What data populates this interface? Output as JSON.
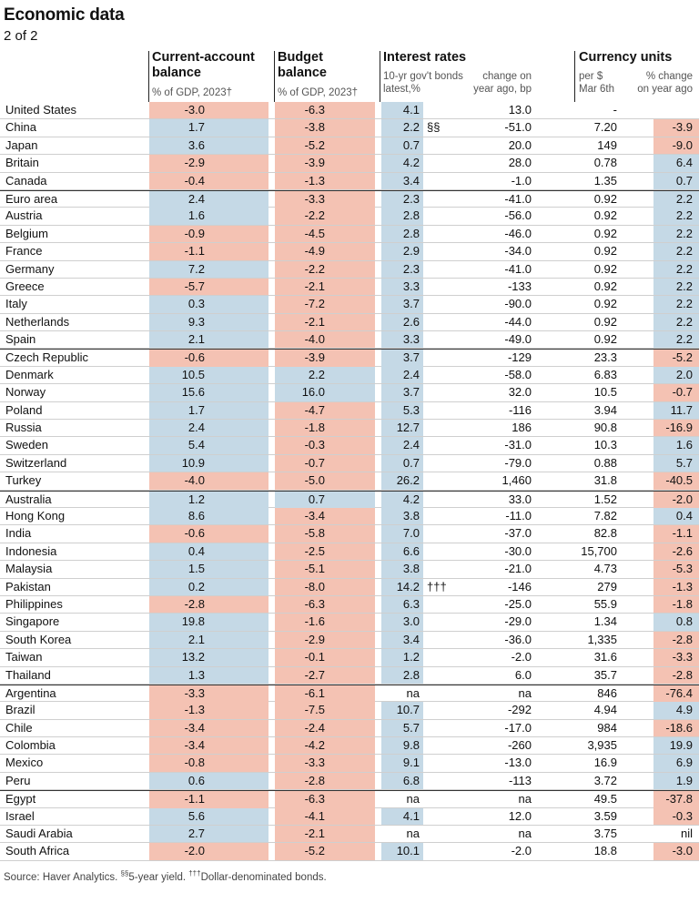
{
  "title": "Economic data",
  "subtitle": "2 of 2",
  "headers": {
    "cab": {
      "line1": "Current-account",
      "line2": "balance",
      "sub": "% of GDP, 2023†"
    },
    "budget": {
      "line1": "Budget",
      "line2": "balance",
      "sub": "% of GDP, 2023†"
    },
    "interest": {
      "line1": "Interest rates",
      "sub1a": "10-yr gov't bonds",
      "sub1b": "latest,%",
      "sub2a": "change on",
      "sub2b": "year ago, bp"
    },
    "currency": {
      "line1": "Currency units",
      "sub1a": "per $",
      "sub1b": "Mar 6th",
      "sub2a": "% change",
      "sub2b": "on year ago"
    }
  },
  "colors": {
    "positive": "#c5d9e6",
    "negative": "#f4c2b3",
    "neutral": "#e4e4e4"
  },
  "rows": [
    {
      "country": "United States",
      "cab": "-3.0",
      "budget": "-6.3",
      "rate": "4.1",
      "note": "",
      "change": "13.0",
      "currency": "-",
      "pct": "",
      "group_start": true
    },
    {
      "country": "China",
      "cab": "1.7",
      "budget": "-3.8",
      "rate": "2.2",
      "note": "§§",
      "change": "-51.0",
      "currency": "7.20",
      "pct": "-3.9"
    },
    {
      "country": "Japan",
      "cab": "3.6",
      "budget": "-5.2",
      "rate": "0.7",
      "note": "",
      "change": "20.0",
      "currency": "149",
      "pct": "-9.0"
    },
    {
      "country": "Britain",
      "cab": "-2.9",
      "budget": "-3.9",
      "rate": "4.2",
      "note": "",
      "change": "28.0",
      "currency": "0.78",
      "pct": "6.4"
    },
    {
      "country": "Canada",
      "cab": "-0.4",
      "budget": "-1.3",
      "rate": "3.4",
      "note": "",
      "change": "-1.0",
      "currency": "1.35",
      "pct": "0.7"
    },
    {
      "country": "Euro area",
      "cab": "2.4",
      "budget": "-3.3",
      "rate": "2.3",
      "note": "",
      "change": "-41.0",
      "currency": "0.92",
      "pct": "2.2",
      "group_start": true
    },
    {
      "country": "Austria",
      "cab": "1.6",
      "budget": "-2.2",
      "rate": "2.8",
      "note": "",
      "change": "-56.0",
      "currency": "0.92",
      "pct": "2.2"
    },
    {
      "country": "Belgium",
      "cab": "-0.9",
      "budget": "-4.5",
      "rate": "2.8",
      "note": "",
      "change": "-46.0",
      "currency": "0.92",
      "pct": "2.2"
    },
    {
      "country": "France",
      "cab": "-1.1",
      "budget": "-4.9",
      "rate": "2.9",
      "note": "",
      "change": "-34.0",
      "currency": "0.92",
      "pct": "2.2"
    },
    {
      "country": "Germany",
      "cab": "7.2",
      "budget": "-2.2",
      "rate": "2.3",
      "note": "",
      "change": "-41.0",
      "currency": "0.92",
      "pct": "2.2"
    },
    {
      "country": "Greece",
      "cab": "-5.7",
      "budget": "-2.1",
      "rate": "3.3",
      "note": "",
      "change": "-133",
      "currency": "0.92",
      "pct": "2.2"
    },
    {
      "country": "Italy",
      "cab": "0.3",
      "budget": "-7.2",
      "rate": "3.7",
      "note": "",
      "change": "-90.0",
      "currency": "0.92",
      "pct": "2.2"
    },
    {
      "country": "Netherlands",
      "cab": "9.3",
      "budget": "-2.1",
      "rate": "2.6",
      "note": "",
      "change": "-44.0",
      "currency": "0.92",
      "pct": "2.2"
    },
    {
      "country": "Spain",
      "cab": "2.1",
      "budget": "-4.0",
      "rate": "3.3",
      "note": "",
      "change": "-49.0",
      "currency": "0.92",
      "pct": "2.2"
    },
    {
      "country": "Czech Republic",
      "cab": "-0.6",
      "budget": "-3.9",
      "rate": "3.7",
      "note": "",
      "change": "-129",
      "currency": "23.3",
      "pct": "-5.2",
      "group_start": true
    },
    {
      "country": "Denmark",
      "cab": "10.5",
      "budget": "2.2",
      "rate": "2.4",
      "note": "",
      "change": "-58.0",
      "currency": "6.83",
      "pct": "2.0"
    },
    {
      "country": "Norway",
      "cab": "15.6",
      "budget": "16.0",
      "rate": "3.7",
      "note": "",
      "change": "32.0",
      "currency": "10.5",
      "pct": "-0.7"
    },
    {
      "country": "Poland",
      "cab": "1.7",
      "budget": "-4.7",
      "rate": "5.3",
      "note": "",
      "change": "-116",
      "currency": "3.94",
      "pct": "11.7"
    },
    {
      "country": "Russia",
      "cab": "2.4",
      "budget": "-1.8",
      "rate": "12.7",
      "note": "",
      "change": "186",
      "currency": "90.8",
      "pct": "-16.9"
    },
    {
      "country": "Sweden",
      "cab": "5.4",
      "budget": "-0.3",
      "rate": "2.4",
      "note": "",
      "change": "-31.0",
      "currency": "10.3",
      "pct": "1.6"
    },
    {
      "country": "Switzerland",
      "cab": "10.9",
      "budget": "-0.7",
      "rate": "0.7",
      "note": "",
      "change": "-79.0",
      "currency": "0.88",
      "pct": "5.7"
    },
    {
      "country": "Turkey",
      "cab": "-4.0",
      "budget": "-5.0",
      "rate": "26.2",
      "note": "",
      "change": "1,460",
      "currency": "31.8",
      "pct": "-40.5"
    },
    {
      "country": "Australia",
      "cab": "1.2",
      "budget": "0.7",
      "rate": "4.2",
      "note": "",
      "change": "33.0",
      "currency": "1.52",
      "pct": "-2.0",
      "group_start": true
    },
    {
      "country": "Hong Kong",
      "cab": "8.6",
      "budget": "-3.4",
      "rate": "3.8",
      "note": "",
      "change": "-11.0",
      "currency": "7.82",
      "pct": "0.4"
    },
    {
      "country": "India",
      "cab": "-0.6",
      "budget": "-5.8",
      "rate": "7.0",
      "note": "",
      "change": "-37.0",
      "currency": "82.8",
      "pct": "-1.1"
    },
    {
      "country": "Indonesia",
      "cab": "0.4",
      "budget": "-2.5",
      "rate": "6.6",
      "note": "",
      "change": "-30.0",
      "currency": "15,700",
      "pct": "-2.6"
    },
    {
      "country": "Malaysia",
      "cab": "1.5",
      "budget": "-5.1",
      "rate": "3.8",
      "note": "",
      "change": "-21.0",
      "currency": "4.73",
      "pct": "-5.3"
    },
    {
      "country": "Pakistan",
      "cab": "0.2",
      "budget": "-8.0",
      "rate": "14.2",
      "note": "†††",
      "change": "-146",
      "currency": "279",
      "pct": "-1.3"
    },
    {
      "country": "Philippines",
      "cab": "-2.8",
      "budget": "-6.3",
      "rate": "6.3",
      "note": "",
      "change": "-25.0",
      "currency": "55.9",
      "pct": "-1.8"
    },
    {
      "country": "Singapore",
      "cab": "19.8",
      "budget": "-1.6",
      "rate": "3.0",
      "note": "",
      "change": "-29.0",
      "currency": "1.34",
      "pct": "0.8"
    },
    {
      "country": "South Korea",
      "cab": "2.1",
      "budget": "-2.9",
      "rate": "3.4",
      "note": "",
      "change": "-36.0",
      "currency": "1,335",
      "pct": "-2.8"
    },
    {
      "country": "Taiwan",
      "cab": "13.2",
      "budget": "-0.1",
      "rate": "1.2",
      "note": "",
      "change": "-2.0",
      "currency": "31.6",
      "pct": "-3.3"
    },
    {
      "country": "Thailand",
      "cab": "1.3",
      "budget": "-2.7",
      "rate": "2.8",
      "note": "",
      "change": "6.0",
      "currency": "35.7",
      "pct": "-2.8"
    },
    {
      "country": "Argentina",
      "cab": "-3.3",
      "budget": "-6.1",
      "rate": "na",
      "note": "",
      "change": "na",
      "currency": "846",
      "pct": "-76.4",
      "group_start": true
    },
    {
      "country": "Brazil",
      "cab": "-1.3",
      "budget": "-7.5",
      "rate": "10.7",
      "note": "",
      "change": "-292",
      "currency": "4.94",
      "pct": "4.9"
    },
    {
      "country": "Chile",
      "cab": "-3.4",
      "budget": "-2.4",
      "rate": "5.7",
      "note": "",
      "change": "-17.0",
      "currency": "984",
      "pct": "-18.6"
    },
    {
      "country": "Colombia",
      "cab": "-3.4",
      "budget": "-4.2",
      "rate": "9.8",
      "note": "",
      "change": "-260",
      "currency": "3,935",
      "pct": "19.9"
    },
    {
      "country": "Mexico",
      "cab": "-0.8",
      "budget": "-3.3",
      "rate": "9.1",
      "note": "",
      "change": "-13.0",
      "currency": "16.9",
      "pct": "6.9"
    },
    {
      "country": "Peru",
      "cab": "0.6",
      "budget": "-2.8",
      "rate": "6.8",
      "note": "",
      "change": "-113",
      "currency": "3.72",
      "pct": "1.9"
    },
    {
      "country": "Egypt",
      "cab": "-1.1",
      "budget": "-6.3",
      "rate": "na",
      "note": "",
      "change": "na",
      "currency": "49.5",
      "pct": "-37.8",
      "group_start": true
    },
    {
      "country": "Israel",
      "cab": "5.6",
      "budget": "-4.1",
      "rate": "4.1",
      "note": "",
      "change": "12.0",
      "currency": "3.59",
      "pct": "-0.3"
    },
    {
      "country": "Saudi Arabia",
      "cab": "2.7",
      "budget": "-2.1",
      "rate": "na",
      "note": "",
      "change": "na",
      "currency": "3.75",
      "pct": "nil"
    },
    {
      "country": "South Africa",
      "cab": "-2.0",
      "budget": "-5.2",
      "rate": "10.1",
      "note": "",
      "change": "-2.0",
      "currency": "18.8",
      "pct": "-3.0"
    }
  ],
  "footer": {
    "source": "Source: Haver Analytics.",
    "sup1": "§§",
    "note1": "5-year yield.",
    "sup2": "†††",
    "note2": "Dollar-denominated bonds."
  }
}
